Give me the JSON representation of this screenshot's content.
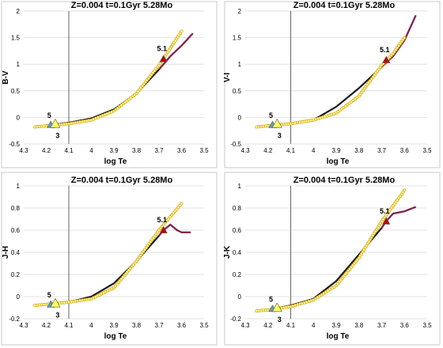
{
  "chart_data": [
    {
      "type": "line",
      "title": "Z=0.004  t=0.1Gyr 5.28Mo",
      "xlabel": "log Te",
      "ylabel": "B-V",
      "xlim": [
        4.3,
        3.5
      ],
      "ylim": [
        -0.5,
        2
      ],
      "xticks": [
        "4.3",
        "4.2",
        "4.1",
        "4",
        "3.9",
        "3.8",
        "3.7",
        "3.6",
        "3.5"
      ],
      "yticks": [
        "-0.5",
        "0",
        "0.5",
        "1",
        "1.5",
        "2"
      ],
      "grid": true,
      "vertical_line_x": 4.1,
      "series": [
        {
          "style": "black",
          "x": [
            4.2,
            4.1,
            4.0,
            3.9,
            3.8,
            3.7,
            3.65,
            3.6,
            3.55
          ],
          "y": [
            -0.15,
            -0.1,
            -0.02,
            0.15,
            0.45,
            0.9,
            1.15,
            1.35,
            1.58
          ]
        },
        {
          "style": "yellow-circles",
          "x": [
            4.25,
            4.2,
            4.1,
            4.0,
            3.9,
            3.8,
            3.7,
            3.65,
            3.6
          ],
          "y": [
            -0.18,
            -0.16,
            -0.12,
            -0.05,
            0.12,
            0.45,
            0.98,
            1.3,
            1.62
          ]
        }
      ],
      "markers": [
        {
          "label": "5",
          "x": 4.18,
          "y": -0.14,
          "color": "#5b9bd5"
        },
        {
          "label": "3",
          "x": 4.16,
          "y": -0.12,
          "color": "#ffff66"
        },
        {
          "label": "5.1",
          "x": 3.68,
          "y": 1.1,
          "color": "#c00000"
        }
      ]
    },
    {
      "type": "line",
      "title": "Z=0.004  t=0.1Gyr 5.28Mo",
      "xlabel": "log Te",
      "ylabel": "V-I",
      "xlim": [
        4.3,
        3.5
      ],
      "ylim": [
        -0.5,
        2
      ],
      "xticks": [
        "4.3",
        "4.2",
        "4.1",
        "4",
        "3.9",
        "3.8",
        "3.7",
        "3.6",
        "3.5"
      ],
      "yticks": [
        "-0.5",
        "0",
        "0.5",
        "1",
        "1.5",
        "2"
      ],
      "grid": true,
      "vertical_line_x": 4.1,
      "series": [
        {
          "style": "black",
          "x": [
            4.2,
            4.1,
            4.0,
            3.9,
            3.8,
            3.7,
            3.65,
            3.6,
            3.55
          ],
          "y": [
            -0.15,
            -0.12,
            -0.05,
            0.2,
            0.55,
            0.95,
            1.15,
            1.45,
            1.92
          ]
        },
        {
          "style": "yellow-circles",
          "x": [
            4.25,
            4.2,
            4.1,
            4.0,
            3.9,
            3.8,
            3.7,
            3.65,
            3.6
          ],
          "y": [
            -0.18,
            -0.16,
            -0.12,
            -0.05,
            0.08,
            0.4,
            0.98,
            1.2,
            1.5
          ]
        }
      ],
      "markers": [
        {
          "label": "5",
          "x": 4.18,
          "y": -0.14,
          "color": "#5b9bd5"
        },
        {
          "label": "3",
          "x": 4.16,
          "y": -0.12,
          "color": "#ffff66"
        },
        {
          "label": "5.1",
          "x": 3.68,
          "y": 1.08,
          "color": "#c00000"
        }
      ]
    },
    {
      "type": "line",
      "title": "Z=0.004  t=0.1Gyr 5.28Mo",
      "xlabel": "log Te",
      "ylabel": "J-H",
      "xlim": [
        4.3,
        3.5
      ],
      "ylim": [
        -0.2,
        1
      ],
      "xticks": [
        "4.3",
        "4.2",
        "4.1",
        "4",
        "3.9",
        "3.8",
        "3.7",
        "3.6",
        "3.5"
      ],
      "yticks": [
        "-0.2",
        "0",
        "0.2",
        "0.4",
        "0.6",
        "0.8",
        "1"
      ],
      "grid": true,
      "vertical_line_x": 4.1,
      "series": [
        {
          "style": "black",
          "x": [
            4.2,
            4.1,
            4.0,
            3.9,
            3.8,
            3.7,
            3.68,
            3.65,
            3.62,
            3.6,
            3.56
          ],
          "y": [
            -0.07,
            -0.05,
            0.0,
            0.12,
            0.32,
            0.55,
            0.6,
            0.65,
            0.6,
            0.58,
            0.58
          ]
        },
        {
          "style": "yellow-circles",
          "x": [
            4.25,
            4.2,
            4.1,
            4.0,
            3.9,
            3.8,
            3.7,
            3.65,
            3.6
          ],
          "y": [
            -0.08,
            -0.07,
            -0.05,
            -0.02,
            0.08,
            0.32,
            0.6,
            0.72,
            0.84
          ]
        }
      ],
      "markers": [
        {
          "label": "5",
          "x": 4.18,
          "y": -0.07,
          "color": "#5b9bd5"
        },
        {
          "label": "3",
          "x": 4.16,
          "y": -0.06,
          "color": "#ffff66"
        },
        {
          "label": "5.1",
          "x": 3.68,
          "y": 0.6,
          "color": "#c00000"
        }
      ]
    },
    {
      "type": "line",
      "title": "Z=0.004  t=0.1Gyr 5.28Mo",
      "xlabel": "log Te",
      "ylabel": "J-K",
      "xlim": [
        4.3,
        3.5
      ],
      "ylim": [
        -0.2,
        1
      ],
      "xticks": [
        "4.3",
        "4.2",
        "4.1",
        "4",
        "3.9",
        "3.8",
        "3.7",
        "3.6",
        "3.5"
      ],
      "yticks": [
        "-0.2",
        "0",
        "0.2",
        "0.4",
        "0.6",
        "0.8",
        "1"
      ],
      "grid": true,
      "vertical_line_x": 4.1,
      "series": [
        {
          "style": "black",
          "x": [
            4.2,
            4.1,
            4.0,
            3.9,
            3.8,
            3.7,
            3.68,
            3.65,
            3.6,
            3.55
          ],
          "y": [
            -0.12,
            -0.08,
            -0.02,
            0.14,
            0.38,
            0.62,
            0.68,
            0.75,
            0.77,
            0.81
          ]
        },
        {
          "style": "yellow-circles",
          "x": [
            4.25,
            4.2,
            4.1,
            4.0,
            3.9,
            3.8,
            3.7,
            3.65,
            3.6
          ],
          "y": [
            -0.13,
            -0.12,
            -0.09,
            -0.03,
            0.1,
            0.35,
            0.68,
            0.82,
            0.96
          ]
        }
      ],
      "markers": [
        {
          "label": "5",
          "x": 4.18,
          "y": -0.11,
          "color": "#5b9bd5"
        },
        {
          "label": "3",
          "x": 4.16,
          "y": -0.1,
          "color": "#ffff66"
        },
        {
          "label": "5.1",
          "x": 3.68,
          "y": 0.68,
          "color": "#c00000"
        }
      ]
    }
  ]
}
